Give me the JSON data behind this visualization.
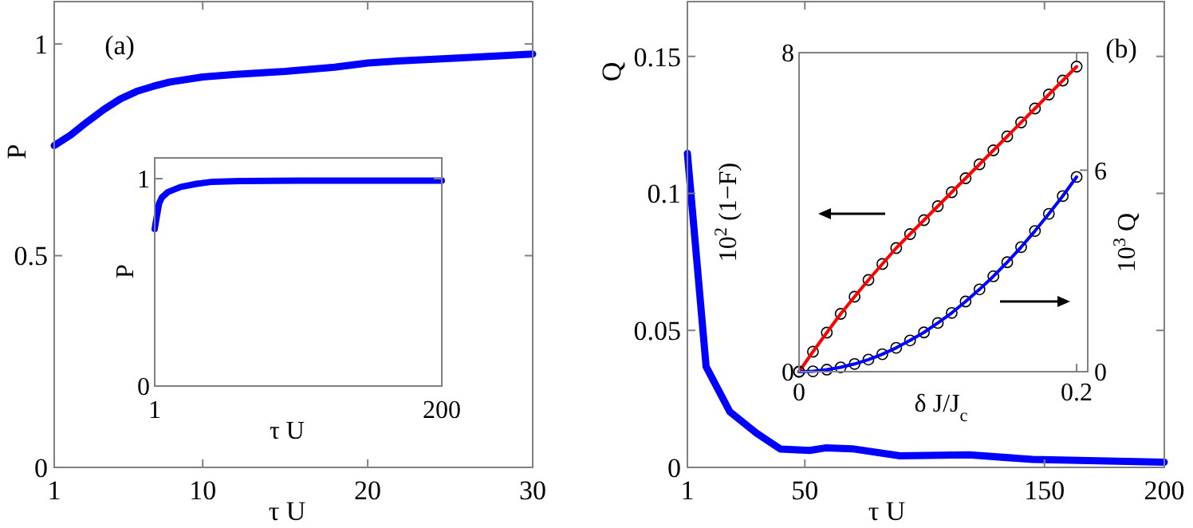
{
  "chart_data": [
    {
      "type": "line",
      "xlabel": "τ U",
      "ylabel": "P",
      "annotations": [
        "(a)"
      ],
      "xlim": [
        1,
        30
      ],
      "ylim": [
        0,
        1.1
      ],
      "xticks": [
        1,
        10,
        20,
        30
      ],
      "yticks": [
        0,
        0.5,
        1
      ],
      "grid": false,
      "x": [
        1,
        2,
        3,
        4,
        5,
        6,
        7,
        8,
        10,
        12,
        15,
        18,
        20,
        22,
        25,
        28,
        30
      ],
      "series": [
        {
          "color": "#0000ff",
          "values": [
            0.76,
            0.785,
            0.816,
            0.845,
            0.87,
            0.888,
            0.9,
            0.91,
            0.922,
            0.928,
            0.935,
            0.945,
            0.955,
            0.96,
            0.966,
            0.972,
            0.976
          ]
        }
      ]
    },
    {
      "type": "line",
      "xlabel": "τ U",
      "ylabel": "P",
      "xlim": [
        1,
        200
      ],
      "ylim": [
        0,
        1.1
      ],
      "xticks": [
        1,
        200
      ],
      "yticks": [
        0,
        1
      ],
      "grid": false,
      "x": [
        1,
        2,
        4,
        6,
        10,
        19,
        30,
        41,
        60,
        100,
        150,
        200
      ],
      "series": [
        {
          "color": "#0000ff",
          "values": [
            0.757,
            0.8,
            0.88,
            0.91,
            0.935,
            0.96,
            0.975,
            0.985,
            0.988,
            0.99,
            0.99,
            0.99
          ]
        }
      ]
    },
    {
      "type": "line",
      "xlabel": "τ U",
      "ylabel": "Q",
      "annotations": [
        "(b)"
      ],
      "xlim": [
        1,
        200
      ],
      "ylim": [
        0,
        0.17
      ],
      "xticks": [
        1,
        50,
        150,
        200
      ],
      "yticks": [
        0,
        0.05,
        0.1,
        0.15
      ],
      "grid": false,
      "x": [
        1,
        8.8,
        18.7,
        29.8,
        39.8,
        52,
        58.6,
        69.7,
        89.7,
        118.5,
        145,
        200
      ],
      "series": [
        {
          "color": "#0000ff",
          "values": [
            0.1146,
            0.0368,
            0.0203,
            0.0125,
            0.0067,
            0.0062,
            0.0071,
            0.0068,
            0.0042,
            0.0046,
            0.0029,
            0.0019
          ]
        }
      ]
    },
    {
      "type": "line",
      "xlabel": "δ J/J$_{c}$",
      "ylabel": "10$^{2}$ (1−F)",
      "y2label": "10$^{3}$ Q",
      "xlim": [
        0,
        0.208
      ],
      "ylim": [
        0,
        8
      ],
      "y2lim": [
        0,
        9.5
      ],
      "xticks": [
        0,
        0.2
      ],
      "yticks": [
        0,
        8
      ],
      "y2ticks": [
        0,
        6
      ],
      "grid": false,
      "x": [
        0,
        0.01,
        0.02,
        0.03,
        0.04,
        0.05,
        0.06,
        0.07,
        0.08,
        0.09,
        0.1,
        0.11,
        0.12,
        0.13,
        0.14,
        0.15,
        0.16,
        0.17,
        0.18,
        0.19,
        0.2
      ],
      "series": [
        {
          "type": "scatter",
          "marker": "circle",
          "color": "#000000",
          "values": [
            0,
            0.5,
            0.98,
            1.45,
            1.88,
            2.3,
            2.7,
            3.1,
            3.45,
            3.8,
            4.15,
            4.5,
            4.85,
            5.2,
            5.55,
            5.9,
            6.25,
            6.6,
            6.95,
            7.3,
            7.65
          ]
        },
        {
          "color": "#ff0000",
          "values": [
            0,
            0.5,
            0.98,
            1.45,
            1.88,
            2.3,
            2.7,
            3.1,
            3.45,
            3.8,
            4.15,
            4.5,
            4.85,
            5.2,
            5.55,
            5.9,
            6.25,
            6.6,
            6.95,
            7.3,
            7.65
          ]
        },
        {
          "type": "scatter",
          "marker": "circle",
          "axis": "y2",
          "color": "#000000",
          "values": [
            0,
            0.01,
            0.06,
            0.13,
            0.23,
            0.36,
            0.52,
            0.71,
            0.93,
            1.17,
            1.45,
            1.75,
            2.09,
            2.45,
            2.84,
            3.26,
            3.71,
            4.19,
            4.7,
            5.23,
            5.8
          ]
        },
        {
          "axis": "y2",
          "color": "#0000ff",
          "values": [
            0,
            0.01,
            0.06,
            0.13,
            0.23,
            0.36,
            0.52,
            0.71,
            0.93,
            1.17,
            1.45,
            1.75,
            2.09,
            2.45,
            2.84,
            3.26,
            3.71,
            4.19,
            4.7,
            5.23,
            5.8
          ]
        }
      ]
    }
  ]
}
